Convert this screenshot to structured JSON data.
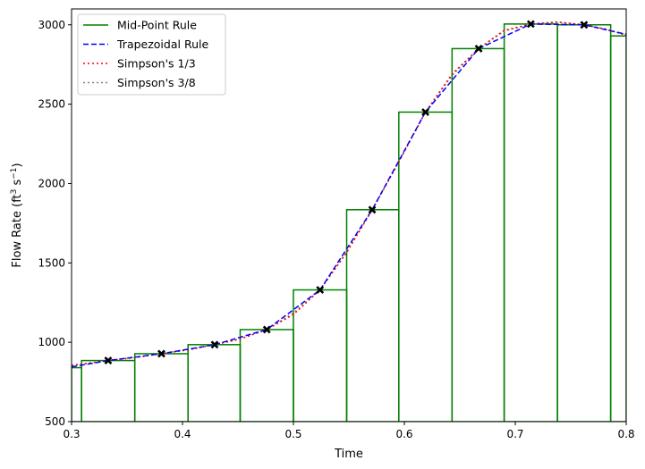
{
  "chart_data": {
    "type": "line",
    "xlabel": "Time",
    "ylabel_main": "Flow Rate (ft",
    "ylabel_sup1": "3",
    "ylabel_mid": " s",
    "ylabel_sup2": "−1",
    "ylabel_end": ")",
    "xlim": [
      0.3,
      0.8
    ],
    "ylim": [
      500,
      3100
    ],
    "xticks": [
      0.3,
      0.4,
      0.5,
      0.6,
      0.7,
      0.8
    ],
    "xtick_labels": [
      "0.3",
      "0.4",
      "0.5",
      "0.6",
      "0.7",
      "0.8"
    ],
    "yticks": [
      500,
      1000,
      1500,
      2000,
      2500,
      3000
    ],
    "ytick_labels": [
      "500",
      "1000",
      "1500",
      "2000",
      "2500",
      "3000"
    ],
    "legend_position": "top-left",
    "legend": [
      {
        "label": "Mid-Point Rule",
        "color": "#008000",
        "dash": "solid"
      },
      {
        "label": "Trapezoidal Rule",
        "color": "#0000ff",
        "dash": "dashed"
      },
      {
        "label": "Simpson's 1/3",
        "color": "#ff0000",
        "dash": "dotted"
      },
      {
        "label": "Simpson's 3/8",
        "color": "#808080",
        "dash": "dotted"
      }
    ],
    "points": {
      "x": [
        0.333,
        0.381,
        0.429,
        0.476,
        0.524,
        0.571,
        0.619,
        0.667,
        0.714,
        0.762
      ],
      "y": [
        885,
        928,
        985,
        1080,
        1330,
        1835,
        2450,
        2850,
        3005,
        3000
      ]
    },
    "midpoint_bins": {
      "edges": [
        0.3,
        0.309,
        0.357,
        0.405,
        0.452,
        0.5,
        0.548,
        0.595,
        0.643,
        0.69,
        0.738,
        0.786,
        0.8
      ],
      "heights": [
        840,
        885,
        928,
        985,
        1080,
        1330,
        1835,
        2450,
        2850,
        3005,
        3000,
        2930
      ]
    },
    "trapezoidal": {
      "x": [
        0.3,
        0.333,
        0.381,
        0.429,
        0.476,
        0.524,
        0.571,
        0.619,
        0.667,
        0.714,
        0.762,
        0.8
      ],
      "y": [
        845,
        885,
        928,
        985,
        1080,
        1330,
        1835,
        2450,
        2850,
        3005,
        3000,
        2940
      ]
    },
    "simpson13": {
      "x": [
        0.3,
        0.333,
        0.357,
        0.381,
        0.405,
        0.429,
        0.452,
        0.476,
        0.5,
        0.524,
        0.548,
        0.571,
        0.595,
        0.619,
        0.643,
        0.667,
        0.69,
        0.714,
        0.738,
        0.762,
        0.78,
        0.8
      ],
      "y": [
        855,
        885,
        903,
        928,
        952,
        985,
        1020,
        1080,
        1175,
        1330,
        1565,
        1835,
        2135,
        2450,
        2690,
        2850,
        2965,
        3005,
        3018,
        3000,
        2975,
        2935
      ]
    },
    "simpson38": {
      "x": [
        0.3,
        0.333,
        0.357,
        0.381,
        0.405,
        0.429,
        0.452,
        0.476,
        0.5,
        0.524,
        0.548,
        0.571,
        0.595,
        0.619,
        0.643,
        0.667,
        0.69,
        0.714,
        0.738,
        0.762,
        0.78,
        0.8
      ],
      "y": [
        852,
        885,
        905,
        928,
        955,
        985,
        1022,
        1080,
        1185,
        1330,
        1570,
        1835,
        2140,
        2450,
        2680,
        2850,
        2960,
        3005,
        3015,
        3000,
        2975,
        2938
      ]
    }
  }
}
